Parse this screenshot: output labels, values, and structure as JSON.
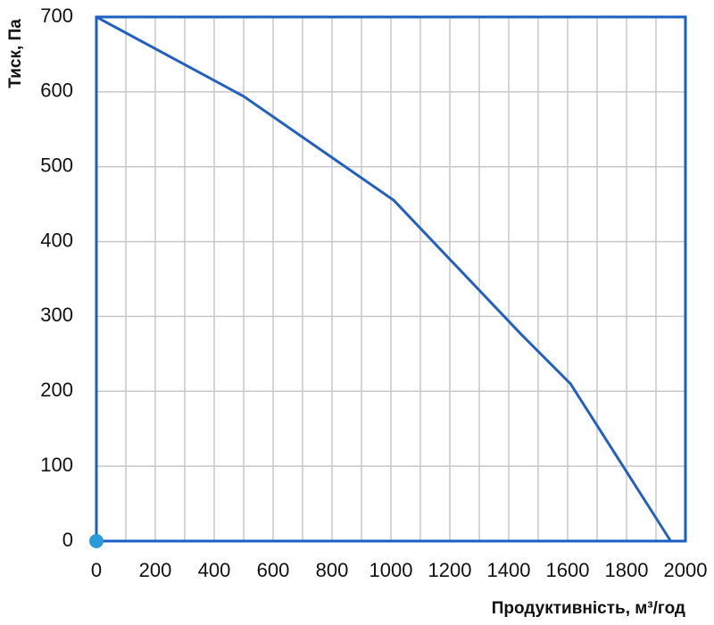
{
  "chart_data": {
    "type": "line",
    "ylabel": "Тиск, Па",
    "xlabel": "Продуктивність, м³/год",
    "xlim": [
      0,
      2000
    ],
    "ylim": [
      0,
      700
    ],
    "xticks": [
      0,
      200,
      400,
      600,
      800,
      1000,
      1200,
      1400,
      1600,
      1800,
      2000
    ],
    "xminorticks": [
      100,
      300,
      500,
      700,
      900,
      1100,
      1300,
      1500,
      1700,
      1900
    ],
    "yticks": [
      0,
      100,
      200,
      300,
      400,
      500,
      600,
      700
    ],
    "grid": true,
    "frame_color": "#1a5fc4",
    "series": [
      {
        "color": "#2360c0",
        "x": [
          0,
          500,
          1010,
          1440,
          1610,
          1950
        ],
        "values": [
          700,
          594,
          455,
          277,
          210,
          0
        ]
      }
    ],
    "marker": {
      "x": 0,
      "y": 0,
      "color": "#2a9ad8"
    }
  }
}
